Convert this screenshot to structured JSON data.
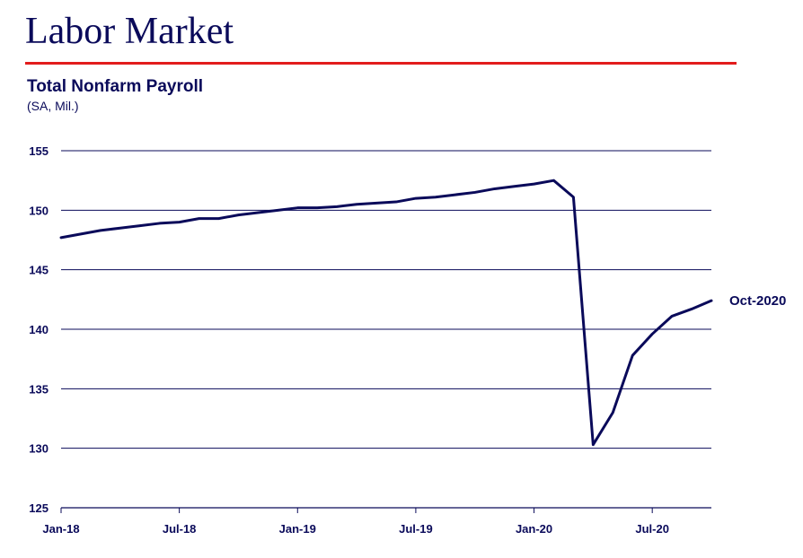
{
  "page": {
    "title": "Labor Market"
  },
  "colors": {
    "navy": "#0a0a5a",
    "rule_red": "#e21c1c",
    "grid": "#0a0a5a"
  },
  "chart_data": {
    "type": "line",
    "title": "Total Nonfarm Payroll",
    "subtitle": "(SA, Mil.)",
    "xlabel": "",
    "ylabel": "",
    "ylim": [
      125,
      155
    ],
    "yticks": [
      125,
      130,
      135,
      140,
      145,
      150,
      155
    ],
    "grid": true,
    "x_tick_labels": [
      "Jan-18",
      "Jul-18",
      "Jan-19",
      "Jul-19",
      "Jan-20",
      "Jul-20"
    ],
    "end_label": "Oct-2020",
    "series": [
      {
        "x": [
          "Jan-18",
          "Feb-18",
          "Mar-18",
          "Apr-18",
          "May-18",
          "Jun-18",
          "Jul-18",
          "Aug-18",
          "Sep-18",
          "Oct-18",
          "Nov-18",
          "Dec-18",
          "Jan-19",
          "Feb-19",
          "Mar-19",
          "Apr-19",
          "May-19",
          "Jun-19",
          "Jul-19",
          "Aug-19",
          "Sep-19",
          "Oct-19",
          "Nov-19",
          "Dec-19",
          "Jan-20",
          "Feb-20",
          "Mar-20",
          "Apr-20",
          "May-20",
          "Jun-20",
          "Jul-20",
          "Aug-20",
          "Sep-20",
          "Oct-20"
        ],
        "values": [
          147.7,
          148.0,
          148.3,
          148.5,
          148.7,
          148.9,
          149.0,
          149.3,
          149.3,
          149.6,
          149.8,
          150.0,
          150.2,
          150.2,
          150.3,
          150.5,
          150.6,
          150.7,
          151.0,
          151.1,
          151.3,
          151.5,
          151.8,
          152.0,
          152.2,
          152.5,
          151.1,
          130.3,
          133.0,
          137.8,
          139.6,
          141.1,
          141.7,
          142.4
        ]
      }
    ]
  }
}
